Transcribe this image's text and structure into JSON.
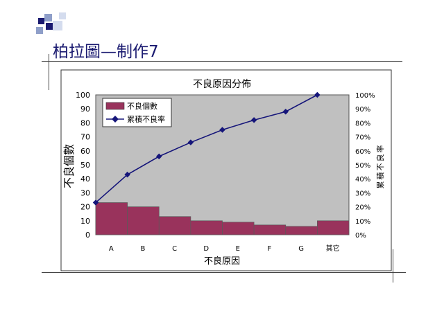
{
  "slide": {
    "title": "柏拉圖—制作7",
    "deco_colors": {
      "dark": "#1a1a70",
      "mid": "#8f9fc9",
      "light": "#d4dcee"
    }
  },
  "chart_data": {
    "type": "bar",
    "title": "不良原因分佈",
    "xlabel": "不良原因",
    "ylabel": "不良個數",
    "y2label": "累積不良率",
    "categories": [
      "A",
      "B",
      "C",
      "D",
      "E",
      "F",
      "G",
      "其它"
    ],
    "ylim": [
      0,
      100
    ],
    "yticks": [
      "0",
      "10",
      "20",
      "30",
      "40",
      "50",
      "60",
      "70",
      "80",
      "90",
      "100"
    ],
    "y2lim": [
      0,
      100
    ],
    "y2ticks": [
      "0%",
      "10%",
      "20%",
      "30%",
      "40%",
      "50%",
      "60%",
      "70%",
      "80%",
      "90%",
      "100%"
    ],
    "series": [
      {
        "name": "不良個數",
        "type": "bar",
        "color": "#99335c",
        "values": [
          23,
          20,
          13,
          10,
          9,
          7,
          6,
          10
        ]
      },
      {
        "name": "累積不良率",
        "type": "line",
        "color": "#16167a",
        "values": [
          23,
          43,
          56,
          66,
          75,
          82,
          88,
          100
        ]
      }
    ],
    "legend_position": "top-left",
    "plot_background": "#c0c0c0",
    "grid": false
  }
}
